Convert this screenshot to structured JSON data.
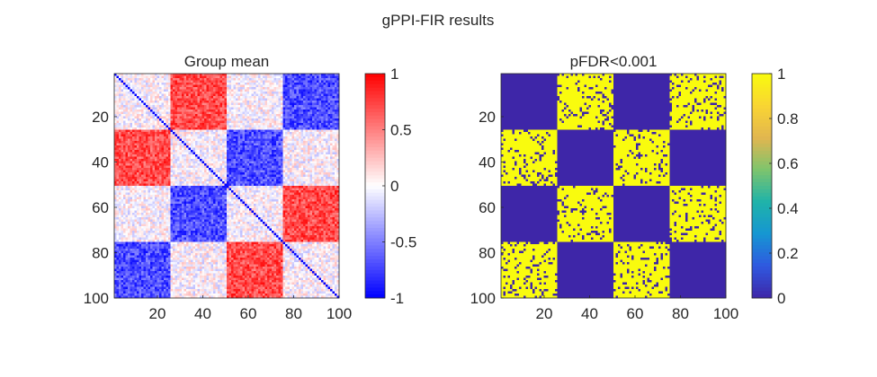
{
  "figure": {
    "suptitle": "gPPI-FIR results"
  },
  "chart_data": [
    {
      "type": "heatmap",
      "title": "Group mean",
      "xlabel": "",
      "ylabel": "",
      "matrix_size": 100,
      "x_ticks": [
        "20",
        "40",
        "60",
        "80",
        "100"
      ],
      "y_ticks": [
        "20",
        "40",
        "60",
        "80",
        "100"
      ],
      "xlim": [
        1,
        100
      ],
      "ylim": [
        1,
        100
      ],
      "y_direction": "reversed",
      "blocks": [
        "1-25",
        "26-50",
        "51-75",
        "76-100"
      ],
      "block_means": [
        [
          0.0,
          0.7,
          0.0,
          -0.7
        ],
        [
          0.7,
          0.0,
          -0.7,
          0.0
        ],
        [
          0.0,
          -0.7,
          0.0,
          0.7
        ],
        [
          -0.7,
          0.0,
          0.7,
          0.0
        ]
      ],
      "diagonal_value": -1,
      "colormap": "blue-white-red",
      "colormap_colors": {
        "low": "#0000ff",
        "mid": "#ffffff",
        "high": "#ff0000"
      },
      "clim": [
        -1,
        1
      ],
      "colorbar_ticks": [
        "-1",
        "-0.5",
        "0",
        "0.5",
        "1"
      ],
      "colorbar_tick_values": [
        -1,
        -0.5,
        0,
        0.5,
        1
      ],
      "grid": false
    },
    {
      "type": "heatmap",
      "title": "pFDR<0.001",
      "xlabel": "",
      "ylabel": "",
      "matrix_size": 100,
      "x_ticks": [
        "20",
        "40",
        "60",
        "80",
        "100"
      ],
      "y_ticks": [
        "20",
        "40",
        "60",
        "80",
        "100"
      ],
      "xlim": [
        1,
        100
      ],
      "ylim": [
        1,
        100
      ],
      "y_direction": "reversed",
      "blocks": [
        "1-25",
        "26-50",
        "51-75",
        "76-100"
      ],
      "block_significant_fraction": [
        [
          0,
          0.85,
          0,
          0.85
        ],
        [
          0.85,
          0,
          0.85,
          0
        ],
        [
          0,
          0.85,
          0,
          0.85
        ],
        [
          0.85,
          0,
          0.85,
          0
        ]
      ],
      "colormap": "parula",
      "colormap_colors": [
        "#3e26a8",
        "#2f59e0",
        "#1696d2",
        "#1fb3a9",
        "#7ec46d",
        "#e2b64f",
        "#f9d533",
        "#f9fb0e"
      ],
      "value_colors": {
        "0": "#3e26a8",
        "1": "#f9fb0e"
      },
      "clim": [
        0,
        1
      ],
      "colorbar_ticks": [
        "0",
        "0.2",
        "0.4",
        "0.6",
        "0.8",
        "1"
      ],
      "colorbar_tick_values": [
        0,
        0.2,
        0.4,
        0.6,
        0.8,
        1
      ],
      "grid": false
    }
  ]
}
